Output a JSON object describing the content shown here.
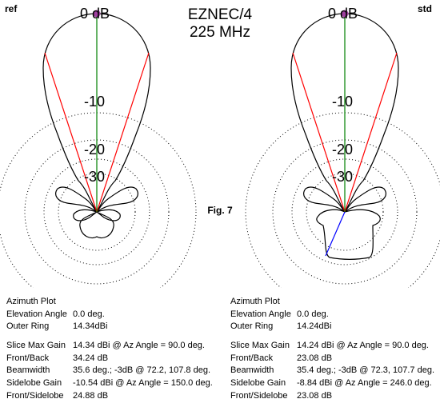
{
  "labels": {
    "left": "ref",
    "right": "std"
  },
  "title": {
    "line1": "EZNEC/4",
    "line2": "225 MHz"
  },
  "figure": "Fig. 7",
  "ring_labels": [
    "0 dB",
    "-10",
    "-20",
    "-30"
  ],
  "colors": {
    "pattern": "#000000",
    "beamwidth": "#ff0000",
    "direction": "#008000",
    "sidelobe": "#0000ff",
    "marker": "#a040a0"
  },
  "plots": [
    {
      "name": "ref",
      "plot_type": "Azimuth Plot",
      "elevation_angle": "0.0 deg.",
      "outer_ring": "14.34dBi",
      "slice_max_gain": "14.34 dBi @ Az Angle = 90.0 deg.",
      "front_back": "34.24 dB",
      "beamwidth": "35.6 deg.; -3dB @ 72.2, 107.8 deg.",
      "sidelobe_gain": "-10.54 dBi @ Az Angle = 150.0 deg.",
      "front_sidelobe": "24.88 dB",
      "beam_edges_deg": [
        72.2,
        107.8
      ],
      "sidelobe_az_deg": 150.0
    },
    {
      "name": "std",
      "plot_type": "Azimuth Plot",
      "elevation_angle": "0.0 deg.",
      "outer_ring": "14.24dBi",
      "slice_max_gain": "14.24 dBi @ Az Angle = 90.0 deg.",
      "front_back": "23.08 dB",
      "beamwidth": "35.4 deg.; -3dB @ 72.3, 107.7 deg.",
      "sidelobe_gain": "-8.84 dBi @ Az Angle = 246.0 deg.",
      "front_sidelobe": "23.08 dB",
      "beam_edges_deg": [
        72.3,
        107.7
      ],
      "sidelobe_az_deg": 246.0
    }
  ],
  "row_labels": {
    "elevation": "Elevation Angle",
    "outer": "Outer Ring",
    "slice": "Slice Max Gain",
    "fb": "Front/Back",
    "bw": "Beamwidth",
    "sl": "Sidelobe Gain",
    "fs": "Front/Sidelobe"
  }
}
